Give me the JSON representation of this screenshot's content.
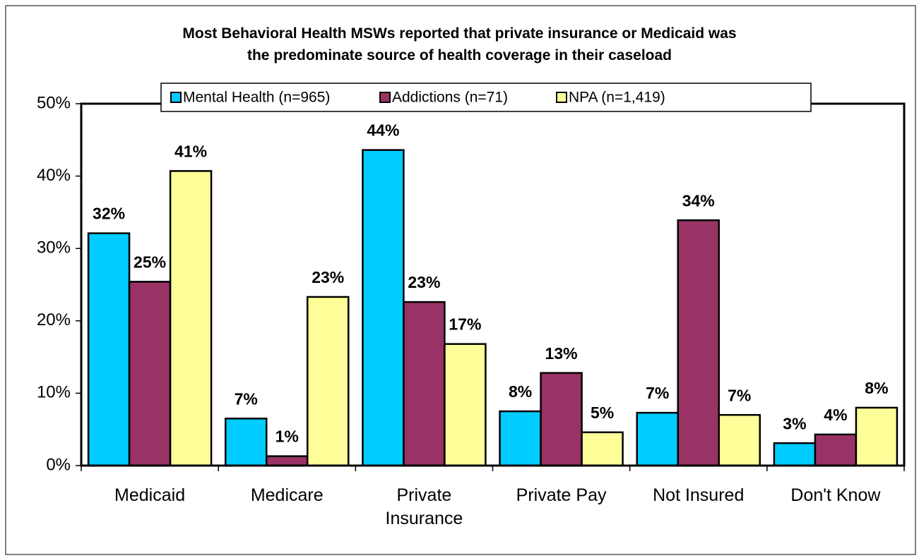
{
  "chart_data": {
    "type": "bar",
    "title": "Most Behavioral Health MSWs reported that private insurance or Medicaid was\nthe predominate source of health coverage in their caseload",
    "categories": [
      "Medicaid",
      "Medicare",
      "Private\nInsurance",
      "Private Pay",
      "Not Insured",
      "Don't Know"
    ],
    "series": [
      {
        "name": "Mental Health (n=965)",
        "color": "#00ccff",
        "values": [
          32.1,
          6.5,
          43.6,
          7.5,
          7.3,
          3.1
        ],
        "value_labels": [
          "32%",
          "7%",
          "44%",
          "8%",
          "7%",
          "3%"
        ]
      },
      {
        "name": "Addictions (n=71)",
        "color": "#993366",
        "values": [
          25.4,
          1.3,
          22.6,
          12.8,
          33.9,
          4.3
        ],
        "value_labels": [
          "25%",
          "1%",
          "23%",
          "13%",
          "34%",
          "4%"
        ]
      },
      {
        "name": "NPA (n=1,419)",
        "color": "#ffff99",
        "values": [
          40.7,
          23.3,
          16.8,
          4.6,
          7.0,
          8.0
        ],
        "value_labels": [
          "41%",
          "23%",
          "17%",
          "5%",
          "7%",
          "8%"
        ]
      }
    ],
    "ylim": [
      0,
      50
    ],
    "yticks": [
      {
        "value": 0,
        "label": "0%"
      },
      {
        "value": 10,
        "label": "10%"
      },
      {
        "value": 20,
        "label": "20%"
      },
      {
        "value": 30,
        "label": "30%"
      },
      {
        "value": 40,
        "label": "40%"
      },
      {
        "value": 50,
        "label": "50%"
      }
    ],
    "legend": "top"
  }
}
